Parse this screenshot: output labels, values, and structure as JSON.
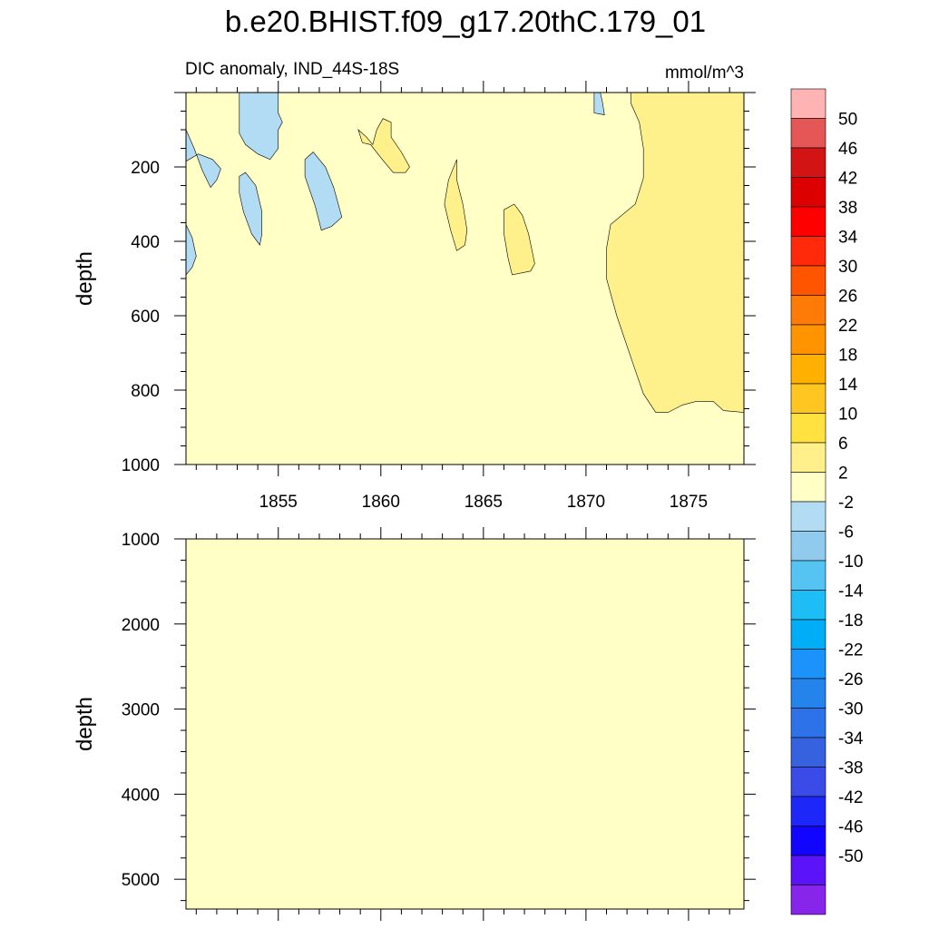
{
  "figure": {
    "title": "b.e20.BHIST.f09_g17.20thC.179_01",
    "subtitle_left": "DIC anomaly, IND_44S-18S",
    "subtitle_right": "mmol/m^3"
  },
  "chart_data": [
    {
      "type": "contour",
      "panel": "upper",
      "xlim": [
        1850.5,
        1877.7
      ],
      "ylim": [
        0,
        1000
      ],
      "y_reversed": true,
      "ylabel": "depth",
      "xticks": [
        1855,
        1860,
        1865,
        1870,
        1875
      ],
      "xtick_labels": [
        "1855",
        "1860",
        "1865",
        "1870",
        "1875"
      ],
      "yticks": [
        200,
        400,
        600,
        800,
        1000
      ],
      "ytick_labels": [
        "200",
        "400",
        "600",
        "800",
        "1000"
      ],
      "background_level": "-2 to 2",
      "regions": [
        {
          "level": "-6 to -2",
          "color": "#b1dcf3",
          "points": [
            [
              1850.5,
              100
            ],
            [
              1850.9,
              150
            ],
            [
              1851.3,
              210
            ],
            [
              1851.7,
              255
            ],
            [
              1852.0,
              235
            ],
            [
              1852.2,
              205
            ],
            [
              1851.8,
              180
            ],
            [
              1851.1,
              165
            ],
            [
              1850.5,
              185
            ]
          ]
        },
        {
          "level": "-6 to -2",
          "color": "#b1dcf3",
          "points": [
            [
              1850.5,
              355
            ],
            [
              1850.8,
              390
            ],
            [
              1851.0,
              440
            ],
            [
              1850.8,
              470
            ],
            [
              1850.5,
              490
            ]
          ]
        },
        {
          "level": "-6 to -2",
          "color": "#b1dcf3",
          "points": [
            [
              1853.1,
              0
            ],
            [
              1853.1,
              110
            ],
            [
              1853.4,
              140
            ],
            [
              1854.0,
              165
            ],
            [
              1854.6,
              180
            ],
            [
              1855.0,
              150
            ],
            [
              1855.0,
              100
            ],
            [
              1855.2,
              80
            ],
            [
              1855.0,
              55
            ],
            [
              1855.0,
              0
            ]
          ]
        },
        {
          "level": "-6 to -2",
          "color": "#b1dcf3",
          "points": [
            [
              1853.1,
              270
            ],
            [
              1853.3,
              320
            ],
            [
              1853.7,
              380
            ],
            [
              1854.1,
              410
            ],
            [
              1854.2,
              380
            ],
            [
              1854.2,
              320
            ],
            [
              1853.9,
              250
            ],
            [
              1853.4,
              215
            ],
            [
              1853.1,
              225
            ]
          ]
        },
        {
          "level": "-6 to -2",
          "color": "#b1dcf3",
          "points": [
            [
              1856.3,
              225
            ],
            [
              1856.8,
              305
            ],
            [
              1857.1,
              370
            ],
            [
              1857.6,
              360
            ],
            [
              1858.1,
              335
            ],
            [
              1857.7,
              255
            ],
            [
              1857.3,
              200
            ],
            [
              1856.7,
              160
            ],
            [
              1856.3,
              180
            ]
          ]
        },
        {
          "level": "-6 to -2",
          "color": "#b1dcf3",
          "points": [
            [
              1870.4,
              0
            ],
            [
              1870.4,
              55
            ],
            [
              1870.9,
              60
            ],
            [
              1870.8,
              25
            ],
            [
              1870.7,
              0
            ]
          ]
        },
        {
          "level": "2 to 6",
          "color": "#fef08a",
          "points": [
            [
              1858.9,
              100
            ],
            [
              1859.1,
              135
            ],
            [
              1859.5,
              140
            ],
            [
              1860.0,
              175
            ],
            [
              1860.6,
              215
            ],
            [
              1861.2,
              215
            ],
            [
              1861.4,
              200
            ],
            [
              1861.0,
              160
            ],
            [
              1860.5,
              120
            ],
            [
              1860.5,
              80
            ],
            [
              1860.1,
              70
            ],
            [
              1859.8,
              100
            ],
            [
              1859.6,
              140
            ],
            [
              1859.3,
              120
            ]
          ]
        },
        {
          "level": "2 to 6",
          "color": "#fef08a",
          "points": [
            [
              1863.7,
              180
            ],
            [
              1863.3,
              235
            ],
            [
              1863.1,
              300
            ],
            [
              1863.4,
              370
            ],
            [
              1863.7,
              425
            ],
            [
              1864.1,
              410
            ],
            [
              1864.2,
              370
            ],
            [
              1864.0,
              300
            ],
            [
              1863.7,
              235
            ]
          ]
        },
        {
          "level": "2 to 6",
          "color": "#fef08a",
          "points": [
            [
              1866.0,
              315
            ],
            [
              1866.0,
              380
            ],
            [
              1866.2,
              445
            ],
            [
              1866.4,
              490
            ],
            [
              1867.3,
              480
            ],
            [
              1867.5,
              460
            ],
            [
              1867.2,
              380
            ],
            [
              1866.9,
              330
            ],
            [
              1866.5,
              300
            ]
          ]
        },
        {
          "level": "2 to 6",
          "color": "#fef08a",
          "points": [
            [
              1873.0,
              0
            ],
            [
              1872.2,
              0
            ],
            [
              1872.2,
              30
            ],
            [
              1872.6,
              80
            ],
            [
              1872.8,
              150
            ],
            [
              1872.8,
              230
            ],
            [
              1872.4,
              300
            ],
            [
              1871.2,
              355
            ],
            [
              1871.0,
              420
            ],
            [
              1871.0,
              500
            ],
            [
              1871.5,
              600
            ],
            [
              1872.3,
              730
            ],
            [
              1872.8,
              810
            ],
            [
              1873.4,
              860
            ],
            [
              1874.0,
              860
            ],
            [
              1874.7,
              840
            ],
            [
              1875.4,
              830
            ],
            [
              1876.2,
              830
            ],
            [
              1876.7,
              855
            ],
            [
              1877.7,
              860
            ],
            [
              1877.7,
              0
            ]
          ]
        }
      ]
    },
    {
      "type": "contour",
      "panel": "lower",
      "ylim": [
        1000,
        5350
      ],
      "y_reversed": true,
      "ylabel": "depth",
      "yticks": [
        1000,
        2000,
        3000,
        4000,
        5000
      ],
      "ytick_labels": [
        "1000",
        "2000",
        "3000",
        "4000",
        "5000"
      ],
      "background_level": "-2 to 2",
      "regions": []
    }
  ],
  "colorbar": {
    "labels": [
      "50",
      "46",
      "42",
      "38",
      "34",
      "30",
      "26",
      "22",
      "18",
      "14",
      "10",
      "6",
      "2",
      "-2",
      "-6",
      "-10",
      "-14",
      "-18",
      "-22",
      "-26",
      "-30",
      "-34",
      "-38",
      "-42",
      "-46",
      "-50"
    ],
    "colors": [
      "#ffb3b3",
      "#e55656",
      "#d21414",
      "#dd0000",
      "#ff0000",
      "#ff2a0a",
      "#ff5500",
      "#ff7b08",
      "#ff9400",
      "#ffb000",
      "#ffc622",
      "#ffe13f",
      "#fff08b",
      "#ffffc6",
      "#b1dcf3",
      "#90cbed",
      "#56c4f2",
      "#1ebdf5",
      "#00aef7",
      "#1b93fa",
      "#2583ec",
      "#2d72e9",
      "#3662e0",
      "#3a4be8",
      "#1d27f7",
      "#1105ff",
      "#5b14f7",
      "#8725eb"
    ]
  }
}
